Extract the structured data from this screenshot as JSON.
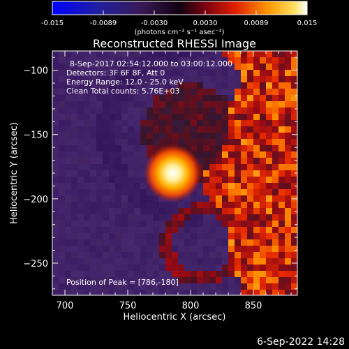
{
  "chart_data": {
    "type": "heatmap",
    "title": "Reconstructed RHESSI Image",
    "xlabel": "Heliocentric X (arcsec)",
    "ylabel": "Heliocentric Y (arcsec)",
    "xlim": [
      690,
      885
    ],
    "ylim": [
      -275,
      -85
    ],
    "xticks": [
      700,
      750,
      800,
      850
    ],
    "yticks": [
      -100,
      -150,
      -200,
      -250
    ],
    "colorbar": {
      "ticks": [
        "-0.015",
        "-0.0089",
        "-0.0030",
        "0.0030",
        "0.0089",
        "0.015"
      ],
      "range": [
        -0.015,
        0.015
      ],
      "unit_label": "(photons cm⁻² s⁻¹ asec⁻²)"
    },
    "info_lines": [
      "8-Sep-2017 02:54:12.000 to 03:00:12.000",
      "Detectors: 3F 6F 8F, Att 0",
      "Energy Range: 12.0 - 25.0 keV",
      "Clean     Total counts: 5.76E+03"
    ],
    "peak_text": "Position of Peak = [786,-180]",
    "peak": [
      786,
      -180
    ],
    "footer_date": "6-Sep-2022 14:28"
  }
}
